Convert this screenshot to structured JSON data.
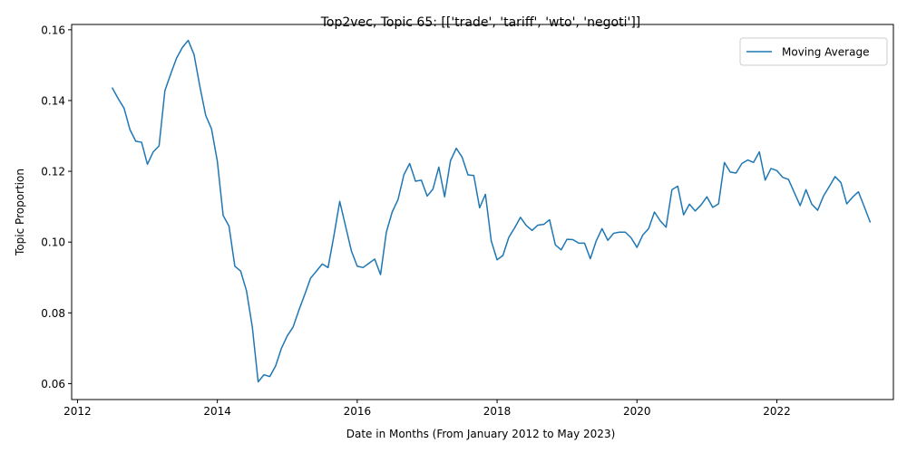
{
  "chart_data": {
    "type": "line",
    "title": "Top2vec, Topic 65: [['trade', 'tariff', 'wto', 'negoti']]",
    "xlabel": "Date in Months (From January 2012 to May 2023)",
    "ylabel": "Topic Proportion",
    "xlim": [
      "2011-12",
      "2023-09"
    ],
    "ylim": [
      0.0555,
      0.1615
    ],
    "x_ticks": [
      {
        "value": "2012-01",
        "label": "2012"
      },
      {
        "value": "2014-01",
        "label": "2014"
      },
      {
        "value": "2016-01",
        "label": "2016"
      },
      {
        "value": "2018-01",
        "label": "2018"
      },
      {
        "value": "2020-01",
        "label": "2020"
      },
      {
        "value": "2022-01",
        "label": "2022"
      }
    ],
    "y_ticks": [
      {
        "value": 0.06,
        "label": "0.06"
      },
      {
        "value": 0.08,
        "label": "0.08"
      },
      {
        "value": 0.1,
        "label": "0.10"
      },
      {
        "value": 0.12,
        "label": "0.12"
      },
      {
        "value": 0.14,
        "label": "0.14"
      },
      {
        "value": 0.16,
        "label": "0.16"
      }
    ],
    "grid": false,
    "legend": {
      "position": "top-right",
      "entries": [
        "Moving Average"
      ]
    },
    "series": [
      {
        "name": "Moving Average",
        "color": "#1f77b4",
        "x": [
          "2012-07",
          "2012-08",
          "2012-09",
          "2012-10",
          "2012-11",
          "2012-12",
          "2013-01",
          "2013-02",
          "2013-03",
          "2013-04",
          "2013-05",
          "2013-06",
          "2013-07",
          "2013-08",
          "2013-09",
          "2013-10",
          "2013-11",
          "2013-12",
          "2014-01",
          "2014-02",
          "2014-03",
          "2014-04",
          "2014-05",
          "2014-06",
          "2014-07",
          "2014-08",
          "2014-09",
          "2014-10",
          "2014-11",
          "2014-12",
          "2015-01",
          "2015-02",
          "2015-03",
          "2015-04",
          "2015-05",
          "2015-06",
          "2015-07",
          "2015-08",
          "2015-09",
          "2015-10",
          "2015-11",
          "2015-12",
          "2016-01",
          "2016-02",
          "2016-03",
          "2016-04",
          "2016-05",
          "2016-06",
          "2016-07",
          "2016-08",
          "2016-09",
          "2016-10",
          "2016-11",
          "2016-12",
          "2017-01",
          "2017-02",
          "2017-03",
          "2017-04",
          "2017-05",
          "2017-06",
          "2017-07",
          "2017-08",
          "2017-09",
          "2017-10",
          "2017-11",
          "2017-12",
          "2018-01",
          "2018-02",
          "2018-03",
          "2018-04",
          "2018-05",
          "2018-06",
          "2018-07",
          "2018-08",
          "2018-09",
          "2018-10",
          "2018-11",
          "2018-12",
          "2019-01",
          "2019-02",
          "2019-03",
          "2019-04",
          "2019-05",
          "2019-06",
          "2019-07",
          "2019-08",
          "2019-09",
          "2019-10",
          "2019-11",
          "2019-12",
          "2020-01",
          "2020-02",
          "2020-03",
          "2020-04",
          "2020-05",
          "2020-06",
          "2020-07",
          "2020-08",
          "2020-09",
          "2020-10",
          "2020-11",
          "2020-12",
          "2021-01",
          "2021-02",
          "2021-03",
          "2021-04",
          "2021-05",
          "2021-06",
          "2021-07",
          "2021-08",
          "2021-09",
          "2021-10",
          "2021-11",
          "2021-12",
          "2022-01",
          "2022-02",
          "2022-03",
          "2022-04",
          "2022-05",
          "2022-06",
          "2022-07",
          "2022-08",
          "2022-09",
          "2022-10",
          "2022-11",
          "2022-12",
          "2023-01",
          "2023-02",
          "2023-03",
          "2023-04",
          "2023-05"
        ],
        "y": [
          0.1435,
          0.1405,
          0.1378,
          0.1318,
          0.1285,
          0.1282,
          0.122,
          0.1255,
          0.1272,
          0.1428,
          0.1475,
          0.152,
          0.155,
          0.157,
          0.153,
          0.144,
          0.1358,
          0.132,
          0.1228,
          0.1075,
          0.1045,
          0.0932,
          0.0918,
          0.0862,
          0.076,
          0.0605,
          0.0625,
          0.062,
          0.065,
          0.07,
          0.0735,
          0.076,
          0.0808,
          0.0852,
          0.0898,
          0.0918,
          0.0938,
          0.0928,
          0.1018,
          0.1115,
          0.1045,
          0.0975,
          0.0932,
          0.0928,
          0.094,
          0.0952,
          0.0908,
          0.1028,
          0.1085,
          0.112,
          0.119,
          0.1222,
          0.1172,
          0.1175,
          0.113,
          0.115,
          0.1212,
          0.1128,
          0.123,
          0.1265,
          0.124,
          0.119,
          0.1188,
          0.1097,
          0.1135,
          0.1003,
          0.095,
          0.0962,
          0.1013,
          0.104,
          0.107,
          0.1047,
          0.1033,
          0.1048,
          0.105,
          0.1063,
          0.0992,
          0.0978,
          0.1008,
          0.1007,
          0.0997,
          0.0997,
          0.0953,
          0.1003,
          0.1038,
          0.1005,
          0.1025,
          0.1028,
          0.1028,
          0.1012,
          0.0985,
          0.102,
          0.1038,
          0.1085,
          0.106,
          0.1042,
          0.1148,
          0.1158,
          0.1077,
          0.1107,
          0.1088,
          0.1105,
          0.1128,
          0.1098,
          0.1108,
          0.1225,
          0.1198,
          0.1195,
          0.1222,
          0.1232,
          0.1225,
          0.1255,
          0.1175,
          0.1208,
          0.1202,
          0.1183,
          0.1177,
          0.114,
          0.1103,
          0.1148,
          0.1107,
          0.109,
          0.113,
          0.1157,
          0.1185,
          0.1168,
          0.1108,
          0.1127,
          0.1142,
          0.11,
          0.1057
        ]
      }
    ]
  }
}
